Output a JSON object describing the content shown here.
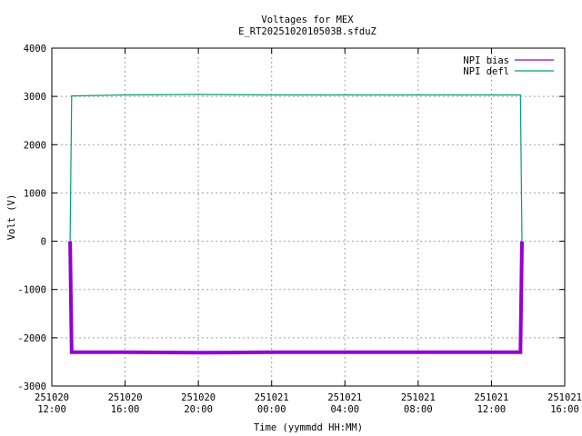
{
  "chart_data": {
    "type": "line",
    "title": "Voltages for MEX",
    "subtitle": "E_RT2025102010503B.sfduZ",
    "xlabel": "Time (yymmdd HH:MM)",
    "ylabel": "Volt (V)",
    "ylim": [
      -3000,
      4000
    ],
    "yticks": [
      -3000,
      -2000,
      -1000,
      0,
      1000,
      2000,
      3000,
      4000
    ],
    "xlim": [
      "2025-10-20 12:00",
      "2025-10-21 16:00"
    ],
    "xticks": [
      {
        "value": "2025-10-20 12:00",
        "date": "251020",
        "time": "12:00"
      },
      {
        "value": "2025-10-20 16:00",
        "date": "251020",
        "time": "16:00"
      },
      {
        "value": "2025-10-20 20:00",
        "date": "251020",
        "time": "20:00"
      },
      {
        "value": "2025-10-21 00:00",
        "date": "251021",
        "time": "00:00"
      },
      {
        "value": "2025-10-21 04:00",
        "date": "251021",
        "time": "04:00"
      },
      {
        "value": "2025-10-21 08:00",
        "date": "251021",
        "time": "08:00"
      },
      {
        "value": "2025-10-21 12:00",
        "date": "251021",
        "time": "12:00"
      },
      {
        "value": "2025-10-21 16:00",
        "date": "251021",
        "time": "16:00"
      }
    ],
    "grid": true,
    "legend_position": "top-right",
    "series": [
      {
        "name": "NPI bias",
        "color": "#9400d3",
        "points": [
          {
            "x": "2025-10-20 13:00",
            "y": 0
          },
          {
            "x": "2025-10-20 13:05",
            "y": -2300
          },
          {
            "x": "2025-10-20 16:00",
            "y": -2300
          },
          {
            "x": "2025-10-20 20:00",
            "y": -2310
          },
          {
            "x": "2025-10-21 00:00",
            "y": -2300
          },
          {
            "x": "2025-10-21 04:00",
            "y": -2300
          },
          {
            "x": "2025-10-21 08:00",
            "y": -2300
          },
          {
            "x": "2025-10-21 12:00",
            "y": -2300
          },
          {
            "x": "2025-10-21 13:35",
            "y": -2300
          },
          {
            "x": "2025-10-21 13:40",
            "y": 0
          }
        ]
      },
      {
        "name": "NPI defl",
        "color": "#009e73",
        "points": [
          {
            "x": "2025-10-20 13:00",
            "y": 0
          },
          {
            "x": "2025-10-20 13:05",
            "y": 3010
          },
          {
            "x": "2025-10-20 16:00",
            "y": 3030
          },
          {
            "x": "2025-10-20 20:00",
            "y": 3040
          },
          {
            "x": "2025-10-21 00:00",
            "y": 3030
          },
          {
            "x": "2025-10-21 04:00",
            "y": 3030
          },
          {
            "x": "2025-10-21 08:00",
            "y": 3030
          },
          {
            "x": "2025-10-21 12:00",
            "y": 3030
          },
          {
            "x": "2025-10-21 13:35",
            "y": 3030
          },
          {
            "x": "2025-10-21 13:40",
            "y": 0
          }
        ]
      }
    ]
  }
}
